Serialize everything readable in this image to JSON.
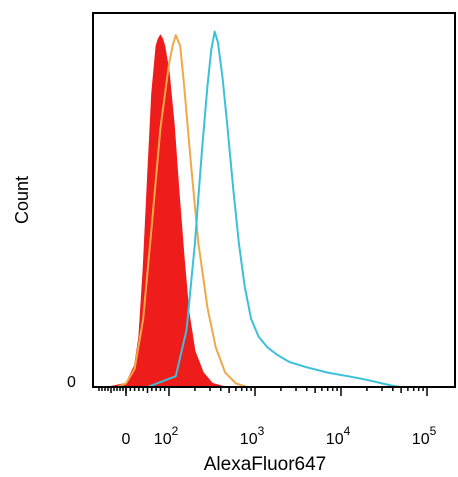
{
  "chart_data": {
    "type": "area",
    "xlabel": "AlexaFluor647",
    "ylabel": "Count",
    "x_scale": "biexponential",
    "xlim": [
      -100,
      100000
    ],
    "ylim": [
      0,
      100
    ],
    "x_ticks": [
      {
        "value": 0,
        "base": "0",
        "exp": ""
      },
      {
        "value": 100,
        "base": "10",
        "exp": "2"
      },
      {
        "value": 1000,
        "base": "10",
        "exp": "3"
      },
      {
        "value": 10000,
        "base": "10",
        "exp": "4"
      },
      {
        "value": 100000,
        "base": "10",
        "exp": "5"
      }
    ],
    "y_ticks": [
      {
        "value": 0,
        "label": "0"
      }
    ],
    "series": [
      {
        "color": "#ef1c1c",
        "filled": true,
        "points": [
          [
            -60,
            0
          ],
          [
            0,
            1
          ],
          [
            20,
            6
          ],
          [
            30,
            14
          ],
          [
            40,
            33
          ],
          [
            50,
            58
          ],
          [
            60,
            82
          ],
          [
            70,
            95
          ],
          [
            75,
            97
          ],
          [
            80,
            98
          ],
          [
            85,
            97
          ],
          [
            90,
            95
          ],
          [
            100,
            88
          ],
          [
            115,
            73
          ],
          [
            130,
            55
          ],
          [
            150,
            36
          ],
          [
            170,
            21
          ],
          [
            200,
            10
          ],
          [
            250,
            4
          ],
          [
            320,
            1
          ],
          [
            450,
            0
          ]
        ]
      },
      {
        "color": "#f0a848",
        "filled": false,
        "points": [
          [
            -30,
            0
          ],
          [
            0,
            1
          ],
          [
            20,
            5
          ],
          [
            40,
            19
          ],
          [
            60,
            45
          ],
          [
            80,
            72
          ],
          [
            100,
            90
          ],
          [
            110,
            95
          ],
          [
            120,
            98
          ],
          [
            135,
            95
          ],
          [
            150,
            84
          ],
          [
            180,
            62
          ],
          [
            220,
            40
          ],
          [
            280,
            22
          ],
          [
            350,
            11
          ],
          [
            450,
            4
          ],
          [
            600,
            1
          ],
          [
            800,
            0
          ],
          [
            100000,
            0
          ]
        ]
      },
      {
        "color": "#3cc0da",
        "filled": false,
        "points": [
          [
            50,
            0
          ],
          [
            120,
            3
          ],
          [
            160,
            16
          ],
          [
            200,
            40
          ],
          [
            240,
            65
          ],
          [
            280,
            84
          ],
          [
            310,
            94
          ],
          [
            340,
            99
          ],
          [
            370,
            96
          ],
          [
            420,
            86
          ],
          [
            480,
            72
          ],
          [
            560,
            55
          ],
          [
            650,
            40
          ],
          [
            760,
            28
          ],
          [
            900,
            19
          ],
          [
            1100,
            14
          ],
          [
            1400,
            11
          ],
          [
            1800,
            9
          ],
          [
            2500,
            7
          ],
          [
            4000,
            5.5
          ],
          [
            7000,
            4
          ],
          [
            12000,
            3
          ],
          [
            20000,
            2
          ],
          [
            30000,
            1
          ],
          [
            40000,
            0.3
          ],
          [
            50000,
            0
          ]
        ]
      }
    ]
  }
}
